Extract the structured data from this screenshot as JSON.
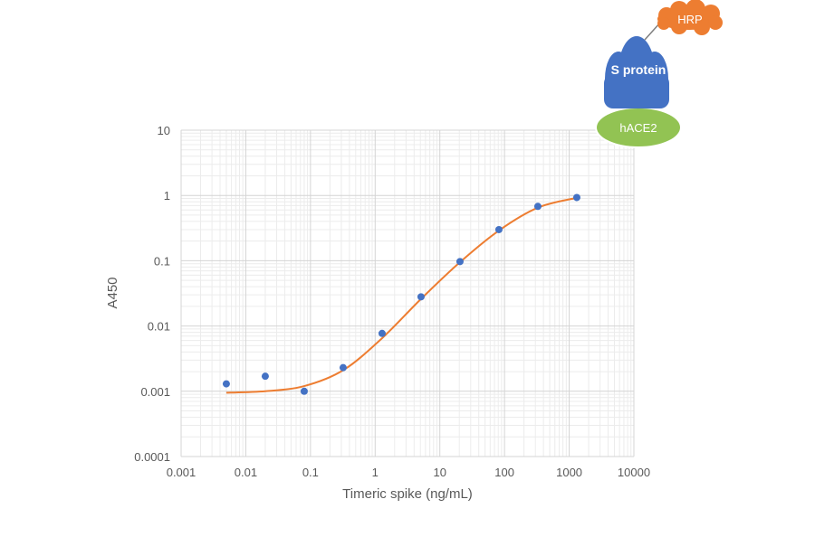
{
  "chart_data": {
    "type": "scatter",
    "xlabel": "Timeric spike (ng/mL)",
    "ylabel": "A450",
    "x_scale": "log",
    "y_scale": "log",
    "xlim": [
      0.001,
      10000
    ],
    "ylim": [
      0.0001,
      10
    ],
    "x_ticks": [
      "0.001",
      "0.01",
      "0.1",
      "1",
      "10",
      "100",
      "1000",
      "10000"
    ],
    "y_ticks": [
      "0.0001",
      "0.001",
      "0.01",
      "0.1",
      "1",
      "10"
    ],
    "grid": true,
    "legend": "none",
    "series": [
      {
        "kind": "points",
        "color": "#4472c4",
        "x": [
          0.005,
          0.02,
          0.08,
          0.32,
          1.28,
          5.12,
          20.48,
          81.92,
          327.68,
          1310.72
        ],
        "y": [
          0.0013,
          0.0017,
          0.001,
          0.0023,
          0.0077,
          0.028,
          0.097,
          0.3,
          0.68,
          0.93
        ]
      },
      {
        "kind": "fit-line",
        "color": "#ed7d31",
        "x": [
          0.005,
          0.02,
          0.08,
          0.32,
          1.28,
          5.12,
          20.48,
          81.92,
          327.68,
          1310.72
        ],
        "y": [
          0.00095,
          0.001,
          0.0012,
          0.0021,
          0.0065,
          0.026,
          0.095,
          0.29,
          0.65,
          0.92
        ]
      }
    ]
  },
  "diagram": {
    "hrp_label": "HRP",
    "s_protein_label": "S protein",
    "hace2_label": "hACE2",
    "hrp_color": "#ed7d31",
    "s_protein_color": "#4472c4",
    "hace2_color": "#92c353"
  }
}
